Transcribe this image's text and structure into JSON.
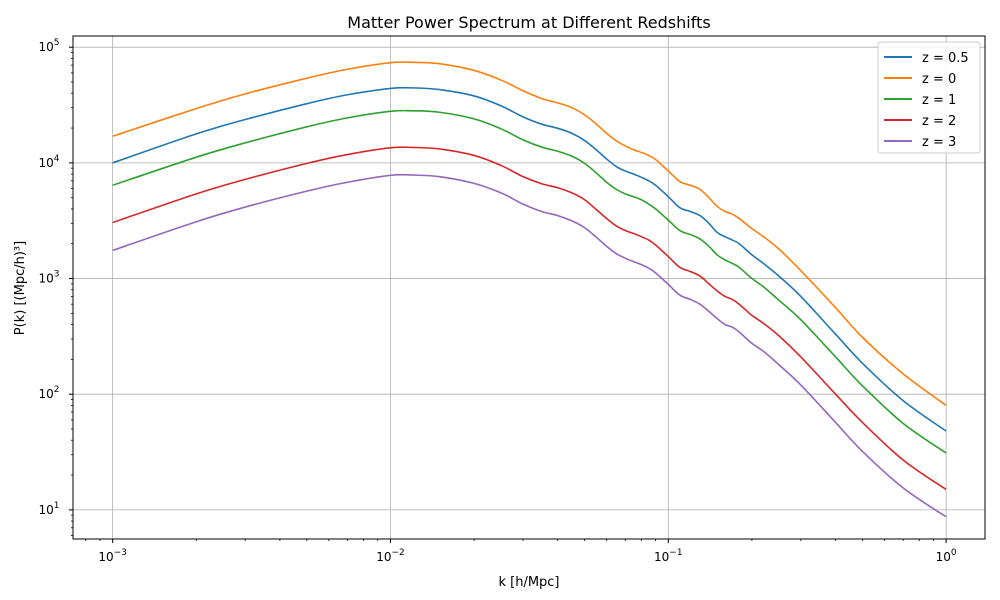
{
  "chart_data": {
    "type": "line",
    "title": "Matter Power Spectrum at Different Redshifts",
    "xlabel": "k [h/Mpc]",
    "ylabel": "P(k) [(Mpc/h)³]",
    "x_scale": "log",
    "y_scale": "log",
    "xlim": [
      0.00072,
      1.38
    ],
    "ylim": [
      5.6,
      125000
    ],
    "grid": true,
    "legend_position": "top-right",
    "x_ticks": [
      {
        "value": 0.001,
        "base": "10",
        "exp": "−3"
      },
      {
        "value": 0.01,
        "base": "10",
        "exp": "−2"
      },
      {
        "value": 0.1,
        "base": "10",
        "exp": "−1"
      },
      {
        "value": 1,
        "base": "10",
        "exp": "0"
      }
    ],
    "y_ticks": [
      {
        "value": 10,
        "base": "10",
        "exp": "1"
      },
      {
        "value": 100,
        "base": "10",
        "exp": "2"
      },
      {
        "value": 1000,
        "base": "10",
        "exp": "3"
      },
      {
        "value": 10000,
        "base": "10",
        "exp": "4"
      },
      {
        "value": 100000,
        "base": "10",
        "exp": "5"
      }
    ],
    "x": [
      0.001,
      0.002,
      0.003,
      0.005,
      0.007,
      0.01,
      0.012,
      0.015,
      0.02,
      0.025,
      0.03,
      0.035,
      0.04,
      0.045,
      0.05,
      0.055,
      0.06,
      0.065,
      0.07,
      0.075,
      0.08,
      0.085,
      0.09,
      0.1,
      0.11,
      0.12,
      0.13,
      0.14,
      0.15,
      0.16,
      0.17,
      0.18,
      0.2,
      0.22,
      0.25,
      0.3,
      0.4,
      0.5,
      0.7,
      1.0
    ],
    "series": [
      {
        "name": "z = 0.5",
        "color": "#1f77b4",
        "values": [
          10000,
          17800,
          23700,
          32500,
          38800,
          44000,
          44500,
          43000,
          37900,
          31100,
          25000,
          21600,
          19900,
          18000,
          15600,
          13000,
          10800,
          9300,
          8500,
          8000,
          7500,
          7000,
          6400,
          5100,
          4100,
          3800,
          3500,
          3000,
          2500,
          2300,
          2150,
          2000,
          1600,
          1350,
          1050,
          700,
          330,
          185,
          88,
          48
        ]
      },
      {
        "name": "z = 0",
        "color": "#ff7f0e",
        "values": [
          17000,
          29500,
          39500,
          54000,
          64500,
          73500,
          74000,
          72000,
          63000,
          52000,
          42000,
          36000,
          33000,
          30000,
          26000,
          21700,
          18000,
          15500,
          14000,
          13000,
          12300,
          11600,
          10700,
          8500,
          6900,
          6400,
          5900,
          5000,
          4200,
          3800,
          3600,
          3300,
          2700,
          2300,
          1800,
          1170,
          560,
          310,
          150,
          80
        ]
      },
      {
        "name": "z = 1",
        "color": "#2ca02c",
        "values": [
          6400,
          11200,
          14900,
          20500,
          24500,
          27900,
          28200,
          27400,
          24000,
          19700,
          15800,
          13700,
          12600,
          11400,
          9900,
          8200,
          6800,
          5900,
          5400,
          5100,
          4800,
          4400,
          4000,
          3200,
          2600,
          2400,
          2200,
          1900,
          1600,
          1450,
          1350,
          1250,
          1000,
          850,
          650,
          440,
          210,
          118,
          56,
          31
        ]
      },
      {
        "name": "z = 2",
        "color": "#d62728",
        "values": [
          3050,
          5400,
          7200,
          9900,
          11800,
          13500,
          13600,
          13200,
          11600,
          9500,
          7600,
          6600,
          6100,
          5500,
          4800,
          3950,
          3300,
          2850,
          2600,
          2450,
          2300,
          2150,
          1950,
          1550,
          1250,
          1150,
          1050,
          900,
          780,
          700,
          660,
          600,
          480,
          410,
          320,
          210,
          100,
          57,
          27,
          15
        ]
      },
      {
        "name": "z = 3",
        "color": "#9467bd",
        "values": [
          1750,
          3100,
          4150,
          5700,
          6800,
          7800,
          7850,
          7600,
          6650,
          5500,
          4400,
          3800,
          3500,
          3150,
          2750,
          2280,
          1900,
          1640,
          1500,
          1400,
          1320,
          1230,
          1120,
          890,
          720,
          660,
          600,
          520,
          450,
          400,
          380,
          345,
          275,
          235,
          180,
          120,
          57,
          32,
          15.5,
          8.7
        ]
      }
    ],
    "legend_order": [
      0,
      1,
      2,
      3,
      4
    ]
  }
}
